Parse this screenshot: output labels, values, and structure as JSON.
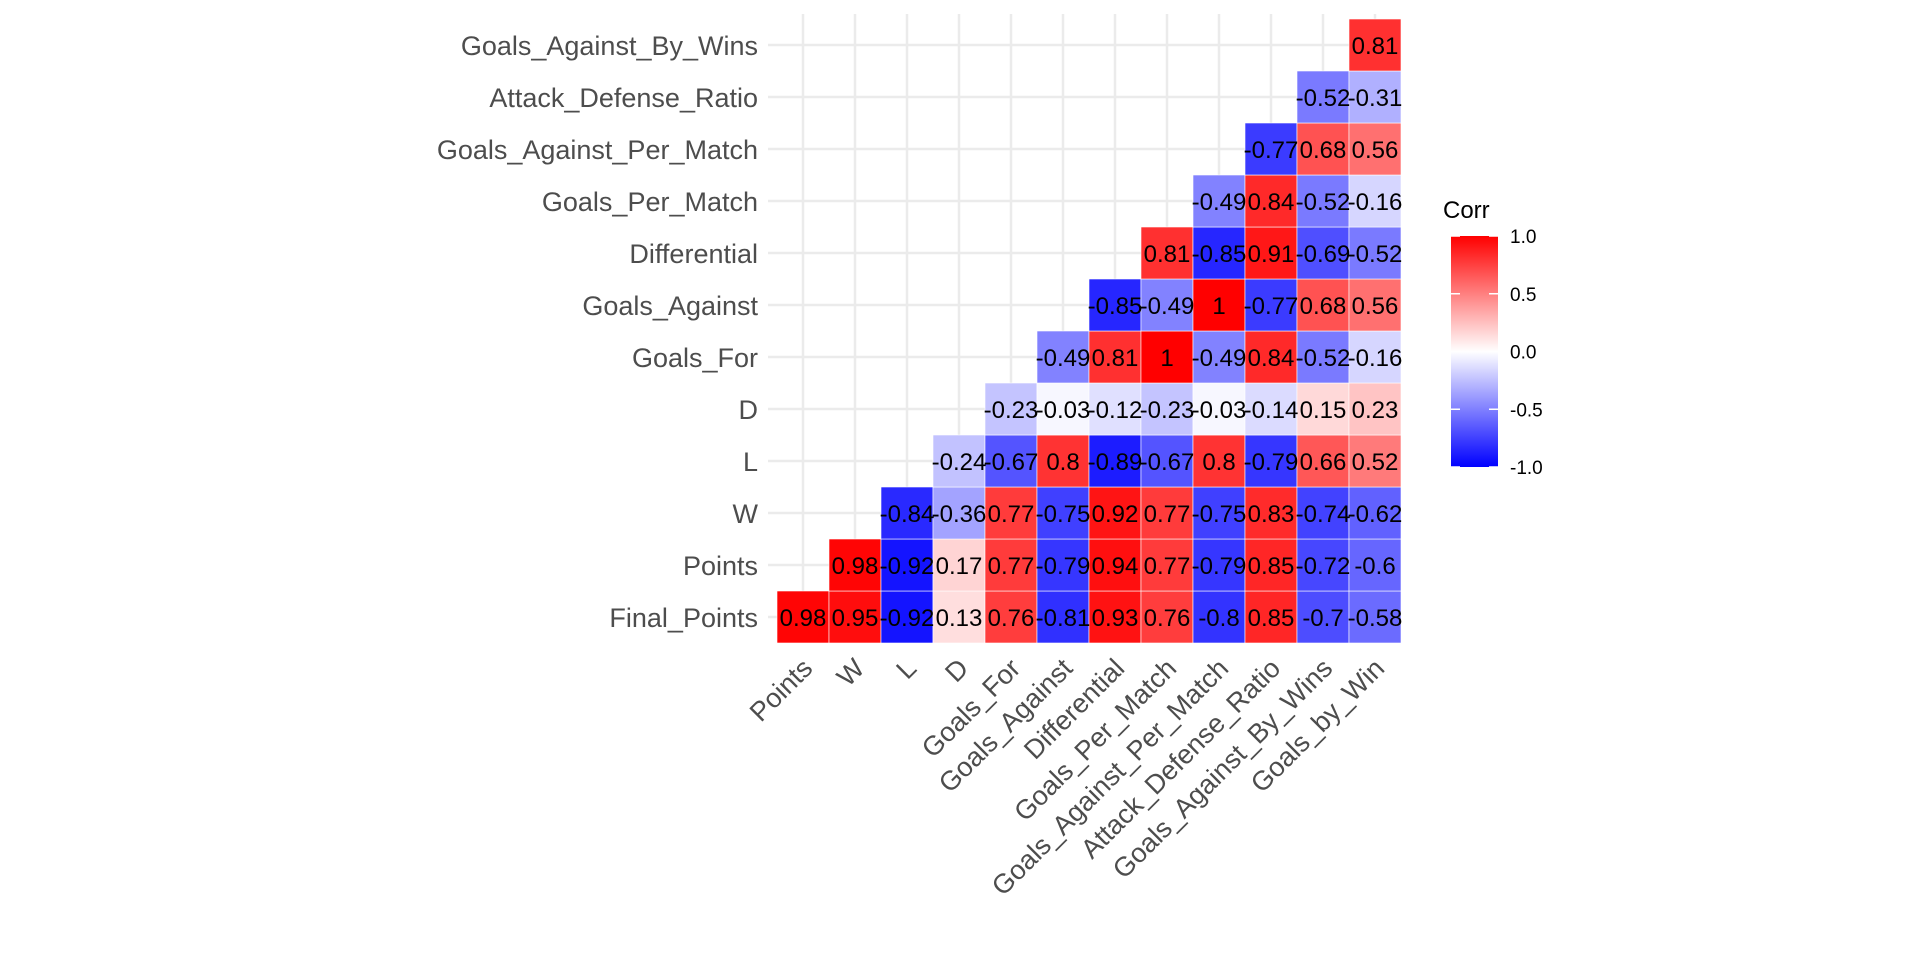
{
  "chart_data": {
    "type": "heatmap",
    "title": "",
    "xlabel": "",
    "ylabel": "",
    "x_categories": [
      "Points",
      "W",
      "L",
      "D",
      "Goals_For",
      "Goals_Against",
      "Differential",
      "Goals_Per_Match",
      "Goals_Against_Per_Match",
      "Attack_Defense_Ratio",
      "Goals_Against_By_Wins",
      "Goals_by_Win"
    ],
    "y_categories": [
      "Final_Points",
      "Points",
      "W",
      "L",
      "D",
      "Goals_For",
      "Goals_Against",
      "Differential",
      "Goals_Per_Match",
      "Goals_Against_Per_Match",
      "Attack_Defense_Ratio",
      "Goals_Against_By_Wins"
    ],
    "values": [
      [
        0.98,
        0.95,
        -0.92,
        0.13,
        0.76,
        -0.81,
        0.93,
        0.76,
        -0.8,
        0.85,
        -0.7,
        -0.58
      ],
      [
        null,
        0.98,
        -0.92,
        0.17,
        0.77,
        -0.79,
        0.94,
        0.77,
        -0.79,
        0.85,
        -0.72,
        -0.6
      ],
      [
        null,
        null,
        -0.84,
        -0.36,
        0.77,
        -0.75,
        0.92,
        0.77,
        -0.75,
        0.83,
        -0.74,
        -0.62
      ],
      [
        null,
        null,
        null,
        -0.24,
        -0.67,
        0.8,
        -0.89,
        -0.67,
        0.8,
        -0.79,
        0.66,
        0.52
      ],
      [
        null,
        null,
        null,
        null,
        -0.23,
        -0.03,
        -0.12,
        -0.23,
        -0.03,
        -0.14,
        0.15,
        0.23
      ],
      [
        null,
        null,
        null,
        null,
        null,
        -0.49,
        0.81,
        1,
        -0.49,
        0.84,
        -0.52,
        -0.16
      ],
      [
        null,
        null,
        null,
        null,
        null,
        null,
        -0.85,
        -0.49,
        1,
        -0.77,
        0.68,
        0.56
      ],
      [
        null,
        null,
        null,
        null,
        null,
        null,
        null,
        0.81,
        -0.85,
        0.91,
        -0.69,
        -0.52
      ],
      [
        null,
        null,
        null,
        null,
        null,
        null,
        null,
        null,
        -0.49,
        0.84,
        -0.52,
        -0.16
      ],
      [
        null,
        null,
        null,
        null,
        null,
        null,
        null,
        null,
        null,
        -0.77,
        0.68,
        0.56
      ],
      [
        null,
        null,
        null,
        null,
        null,
        null,
        null,
        null,
        null,
        null,
        -0.52,
        -0.31
      ],
      [
        null,
        null,
        null,
        null,
        null,
        null,
        null,
        null,
        null,
        null,
        null,
        0.81
      ]
    ],
    "value_range": [
      -1,
      1
    ],
    "colors": {
      "low": "#0000ff",
      "mid": "#ffffff",
      "high": "#ff0000"
    },
    "legend": {
      "title": "Corr",
      "position": "right",
      "ticks": [
        1,
        0.5,
        0,
        -0.5,
        -1
      ],
      "tick_labels": [
        "1.0",
        "0.5",
        "0.0",
        "-0.5",
        "-1.0"
      ]
    },
    "grid": true
  }
}
